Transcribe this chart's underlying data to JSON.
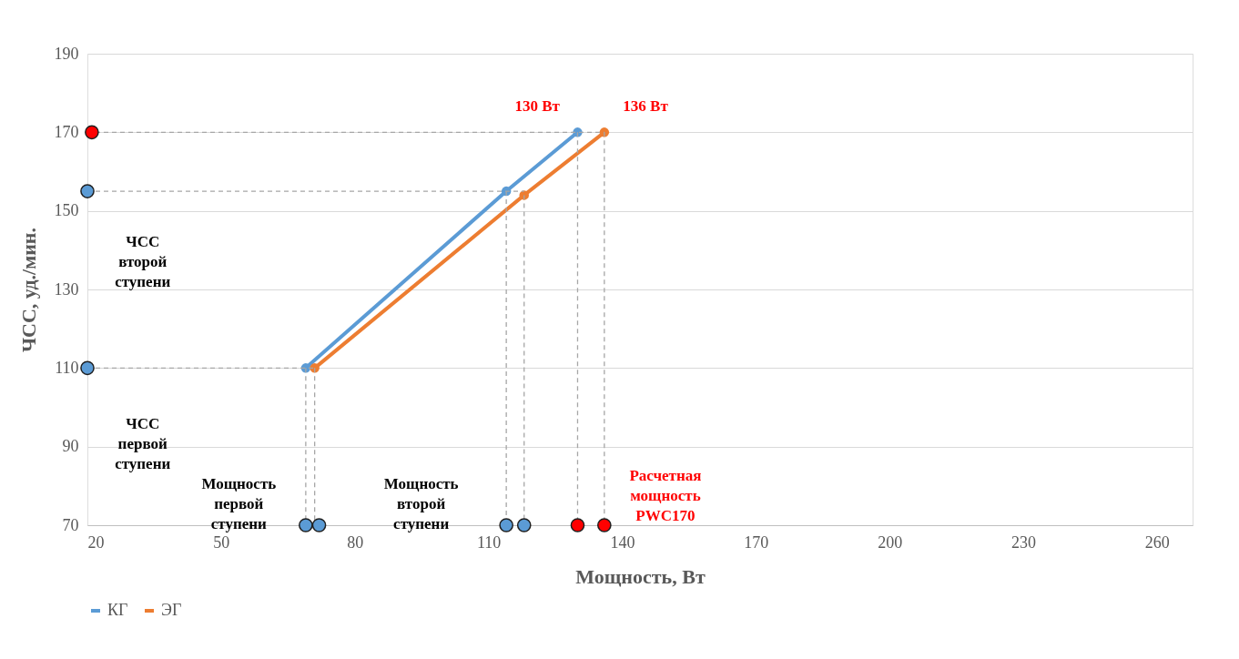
{
  "chart_data": {
    "type": "line",
    "xlabel": "Мощность, Вт",
    "ylabel": "ЧСС, уд./мин.",
    "xlim": [
      20,
      268
    ],
    "xticks": [
      20,
      50,
      80,
      110,
      140,
      170,
      200,
      230,
      260
    ],
    "ylim": [
      70,
      190
    ],
    "yticks": [
      70,
      90,
      110,
      130,
      150,
      170,
      190
    ],
    "grid": "y",
    "legend": "bottom",
    "marker": "circle",
    "line_style": "solid",
    "series": [
      {
        "name": "КГ",
        "color": "#5b9bd5",
        "x": [
          69,
          114,
          130
        ],
        "values": [
          110,
          155,
          170
        ]
      },
      {
        "name": "ЭГ",
        "color": "#ed7d31",
        "x": [
          71,
          118,
          136
        ],
        "values": [
          110,
          154,
          170
        ]
      },
      {
        "type": "line",
        "color": "#a6a6a6",
        "line_style": "dashed",
        "marker": "none",
        "x": [
          20,
          136
        ],
        "values": [
          170,
          170
        ]
      },
      {
        "type": "line",
        "color": "#a6a6a6",
        "line_style": "dashed",
        "marker": "none",
        "x": [
          20,
          118
        ],
        "values": [
          155,
          155
        ]
      },
      {
        "type": "line",
        "color": "#a6a6a6",
        "line_style": "dashed",
        "marker": "none",
        "x": [
          20,
          71
        ],
        "values": [
          110,
          110
        ]
      },
      {
        "type": "line",
        "color": "#a6a6a6",
        "line_style": "dashed",
        "marker": "none",
        "x": [
          69,
          69
        ],
        "values": [
          110,
          70
        ]
      },
      {
        "type": "line",
        "color": "#a6a6a6",
        "line_style": "dashed",
        "marker": "none",
        "x": [
          71,
          71
        ],
        "values": [
          110,
          70
        ]
      },
      {
        "type": "line",
        "color": "#a6a6a6",
        "line_style": "dashed",
        "marker": "none",
        "x": [
          114,
          114
        ],
        "values": [
          155,
          70
        ]
      },
      {
        "type": "line",
        "color": "#a6a6a6",
        "line_style": "dashed",
        "marker": "none",
        "x": [
          118,
          118
        ],
        "values": [
          154,
          70
        ]
      },
      {
        "type": "line",
        "color": "#a6a6a6",
        "line_style": "dashed",
        "marker": "none",
        "x": [
          130,
          130
        ],
        "values": [
          170,
          70
        ]
      },
      {
        "type": "line",
        "color": "#a6a6a6",
        "line_style": "dashed",
        "marker": "none",
        "x": [
          136,
          136
        ],
        "values": [
          170,
          70
        ]
      },
      {
        "type": "scatter",
        "color": "#5b9bd5",
        "marker": "circle",
        "x": [
          20,
          20,
          69,
          72,
          114,
          118
        ],
        "values": [
          155,
          110,
          70,
          70,
          70,
          70
        ]
      },
      {
        "type": "scatter",
        "color": "#ff0000",
        "marker": "circle",
        "x": [
          21,
          130,
          136
        ],
        "values": [
          170,
          70,
          70
        ]
      }
    ],
    "annotations": [
      "130 Вт",
      "136 Вт",
      "ЧСС второй ступени",
      "ЧСС первой ступени",
      "Мощность первой ступени",
      "Мощность второй ступени",
      "Расчетная мощность PWC170"
    ]
  }
}
